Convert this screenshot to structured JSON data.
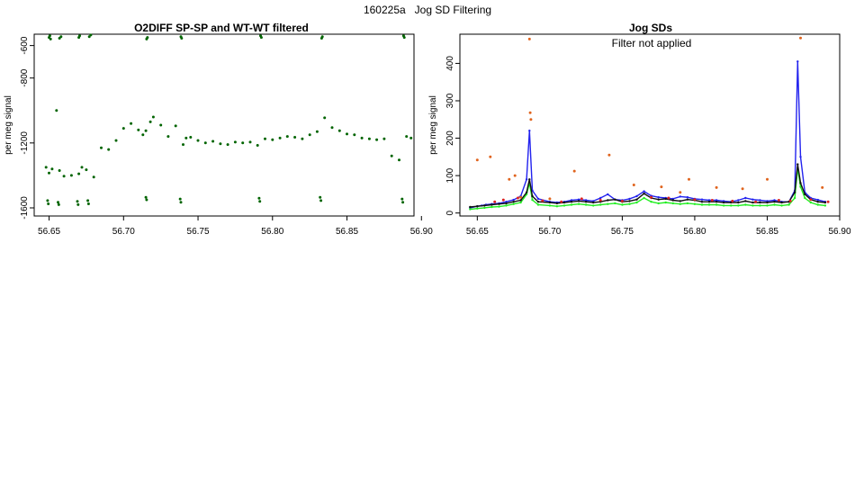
{
  "figure": {
    "title": "160225a   Jog SD Filtering"
  },
  "colors": {
    "o2diff": "#006400",
    "sd_blue": "#2222ee",
    "sd_green": "#22ee22",
    "sd_dark": "#111111",
    "sd_red": "#dd2222",
    "sd_outlier": "#e0641e"
  },
  "chart_data": [
    {
      "type": "scatter",
      "title": "O2DIFF SP-SP and WT-WT filtered",
      "xlabel": "",
      "ylabel": "per meg signal",
      "xlim": [
        56.64,
        56.895
      ],
      "ylim": [
        -1650,
        -530
      ],
      "xticks": [
        56.65,
        56.7,
        56.75,
        56.8,
        56.85,
        56.9
      ],
      "xtick_labels": [
        "56.65",
        "56.70",
        "56.75",
        "56.80",
        "56.85",
        "56.90"
      ],
      "yticks": [
        -600,
        -800,
        -1200,
        -1600
      ],
      "ytick_labels": [
        "-600",
        "-800",
        "-1200",
        "-1600"
      ],
      "grid": false,
      "series": [
        {
          "color_key": "o2diff",
          "x": [
            56.648,
            56.65,
            56.652,
            56.655,
            56.657,
            56.66,
            56.665,
            56.67,
            56.672,
            56.675,
            56.68,
            56.685,
            56.69,
            56.695,
            56.7,
            56.705,
            56.71,
            56.713,
            56.715,
            56.718,
            56.72,
            56.725,
            56.73,
            56.735,
            56.74,
            56.742,
            56.745,
            56.75,
            56.755,
            56.76,
            56.765,
            56.77,
            56.775,
            56.78,
            56.785,
            56.79,
            56.795,
            56.8,
            56.805,
            56.81,
            56.815,
            56.82,
            56.825,
            56.83,
            56.835,
            56.84,
            56.845,
            56.85,
            56.855,
            56.86,
            56.865,
            56.87,
            56.875,
            56.88,
            56.885,
            56.89,
            56.893
          ],
          "y": [
            -1350,
            -1385,
            -1360,
            -1000,
            -1370,
            -1405,
            -1400,
            -1390,
            -1350,
            -1365,
            -1410,
            -1230,
            -1240,
            -1185,
            -1110,
            -1080,
            -1120,
            -1150,
            -1125,
            -1070,
            -1040,
            -1090,
            -1160,
            -1095,
            -1210,
            -1170,
            -1165,
            -1185,
            -1200,
            -1190,
            -1205,
            -1210,
            -1195,
            -1200,
            -1195,
            -1215,
            -1175,
            -1180,
            -1170,
            -1160,
            -1165,
            -1175,
            -1150,
            -1130,
            -1045,
            -1105,
            -1125,
            -1145,
            -1150,
            -1170,
            -1175,
            -1180,
            -1175,
            -1280,
            -1305,
            -1160,
            -1170
          ]
        },
        {
          "color_key": "o2diff",
          "x": [
            56.65,
            56.6505,
            56.651,
            56.657,
            56.658,
            56.67,
            56.6705,
            56.677,
            56.678,
            56.7155,
            56.716,
            56.7385,
            56.739,
            56.792,
            56.7925,
            56.833,
            56.8335,
            56.888,
            56.8885
          ],
          "y": [
            -550,
            -540,
            -560,
            -555,
            -545,
            -550,
            -540,
            -545,
            -535,
            -560,
            -550,
            -545,
            -555,
            -540,
            -550,
            -555,
            -545,
            -540,
            -550
          ]
        },
        {
          "color_key": "o2diff",
          "x": [
            56.649,
            56.6495,
            56.656,
            56.6565,
            56.669,
            56.6695,
            56.676,
            56.6765,
            56.715,
            56.7155,
            56.738,
            56.7385,
            56.791,
            56.7915,
            56.832,
            56.8325,
            56.887,
            56.8875
          ],
          "y": [
            -1555,
            -1575,
            -1565,
            -1580,
            -1560,
            -1580,
            -1555,
            -1575,
            -1535,
            -1550,
            -1545,
            -1565,
            -1540,
            -1560,
            -1535,
            -1555,
            -1545,
            -1565
          ]
        }
      ]
    },
    {
      "type": "line",
      "title": "Jog SDs",
      "annotation": "Filter not applied",
      "xlabel": "",
      "ylabel": "per meg signal",
      "xlim": [
        56.638,
        56.9
      ],
      "ylim": [
        -8,
        478
      ],
      "xticks": [
        56.65,
        56.7,
        56.75,
        56.8,
        56.85,
        56.9
      ],
      "xtick_labels": [
        "56.65",
        "56.70",
        "56.75",
        "56.80",
        "56.85",
        "56.90"
      ],
      "yticks": [
        0,
        100,
        200,
        300,
        400
      ],
      "ytick_labels": [
        "0",
        "100",
        "200",
        "300",
        "400"
      ],
      "grid": false,
      "series": [
        {
          "color_key": "sd_blue",
          "x": [
            56.645,
            56.65,
            56.653,
            56.656,
            56.66,
            56.665,
            56.67,
            56.675,
            56.68,
            56.684,
            56.686,
            56.688,
            56.692,
            56.7,
            56.705,
            56.71,
            56.715,
            56.72,
            56.725,
            56.73,
            56.735,
            56.74,
            56.745,
            56.75,
            56.755,
            56.76,
            56.765,
            56.77,
            56.775,
            56.78,
            56.785,
            56.79,
            56.795,
            56.8,
            56.805,
            56.81,
            56.815,
            56.82,
            56.825,
            56.83,
            56.835,
            56.84,
            56.845,
            56.85,
            56.855,
            56.86,
            56.865,
            56.869,
            56.871,
            56.873,
            56.876,
            56.88,
            56.885,
            56.89
          ],
          "y": [
            14,
            18,
            20,
            22,
            24,
            26,
            30,
            35,
            45,
            90,
            220,
            60,
            38,
            30,
            28,
            30,
            34,
            36,
            34,
            32,
            40,
            50,
            36,
            34,
            38,
            45,
            58,
            46,
            42,
            40,
            38,
            44,
            42,
            38,
            36,
            34,
            34,
            32,
            30,
            34,
            40,
            36,
            34,
            32,
            34,
            30,
            30,
            60,
            405,
            150,
            55,
            40,
            35,
            30
          ]
        },
        {
          "color_key": "sd_green",
          "x": [
            56.645,
            56.65,
            56.655,
            56.66,
            56.665,
            56.67,
            56.675,
            56.68,
            56.684,
            56.686,
            56.688,
            56.692,
            56.7,
            56.705,
            56.71,
            56.715,
            56.72,
            56.725,
            56.73,
            56.735,
            56.74,
            56.745,
            56.75,
            56.755,
            56.76,
            56.765,
            56.77,
            56.775,
            56.78,
            56.785,
            56.79,
            56.795,
            56.8,
            56.805,
            56.81,
            56.815,
            56.82,
            56.825,
            56.83,
            56.835,
            56.84,
            56.845,
            56.85,
            56.855,
            56.86,
            56.865,
            56.869,
            56.871,
            56.873,
            56.876,
            56.88,
            56.885,
            56.89
          ],
          "y": [
            10,
            12,
            14,
            16,
            17,
            20,
            24,
            28,
            50,
            80,
            35,
            22,
            20,
            18,
            20,
            22,
            24,
            22,
            20,
            22,
            24,
            26,
            22,
            24,
            28,
            40,
            30,
            26,
            28,
            26,
            24,
            26,
            24,
            22,
            22,
            22,
            20,
            20,
            20,
            22,
            20,
            20,
            20,
            22,
            20,
            22,
            40,
            120,
            70,
            40,
            28,
            22,
            20
          ]
        },
        {
          "color_key": "sd_dark",
          "x": [
            56.645,
            56.65,
            56.655,
            56.66,
            56.665,
            56.67,
            56.675,
            56.68,
            56.684,
            56.686,
            56.688,
            56.692,
            56.7,
            56.705,
            56.71,
            56.715,
            56.72,
            56.725,
            56.73,
            56.735,
            56.74,
            56.745,
            56.75,
            56.755,
            56.76,
            56.765,
            56.77,
            56.775,
            56.78,
            56.785,
            56.79,
            56.795,
            56.8,
            56.805,
            56.81,
            56.815,
            56.82,
            56.825,
            56.83,
            56.835,
            56.84,
            56.845,
            56.85,
            56.855,
            56.86,
            56.865,
            56.869,
            56.871,
            56.873,
            56.876,
            56.88,
            56.885,
            56.89
          ],
          "y": [
            16,
            18,
            20,
            22,
            24,
            26,
            30,
            34,
            55,
            90,
            45,
            30,
            28,
            26,
            28,
            30,
            32,
            30,
            28,
            30,
            34,
            36,
            30,
            32,
            36,
            52,
            40,
            36,
            38,
            34,
            32,
            36,
            34,
            30,
            30,
            30,
            28,
            28,
            28,
            32,
            28,
            28,
            28,
            30,
            28,
            30,
            55,
            130,
            80,
            50,
            36,
            30,
            28
          ]
        },
        {
          "color_key": "sd_outlier",
          "marker": "point",
          "x": [
            56.65,
            56.659,
            56.672,
            56.676,
            56.686,
            56.6865,
            56.687,
            56.717,
            56.741,
            56.758,
            56.777,
            56.796,
            56.815,
            56.833,
            56.85,
            56.873,
            56.888,
            56.68,
            56.7,
            56.79
          ],
          "y": [
            142,
            150,
            90,
            100,
            465,
            268,
            250,
            112,
            155,
            75,
            70,
            90,
            68,
            65,
            90,
            468,
            68,
            42,
            38,
            55
          ]
        },
        {
          "color_key": "sd_red",
          "marker": "point",
          "x": [
            56.662,
            56.668,
            56.678,
            56.695,
            56.708,
            56.722,
            56.735,
            56.75,
            56.77,
            56.782,
            56.8,
            56.812,
            56.826,
            56.842,
            56.858,
            56.866,
            56.88,
            56.892
          ],
          "y": [
            30,
            35,
            40,
            33,
            30,
            38,
            34,
            32,
            42,
            40,
            36,
            34,
            32,
            30,
            34,
            32,
            36,
            30
          ]
        }
      ]
    }
  ]
}
